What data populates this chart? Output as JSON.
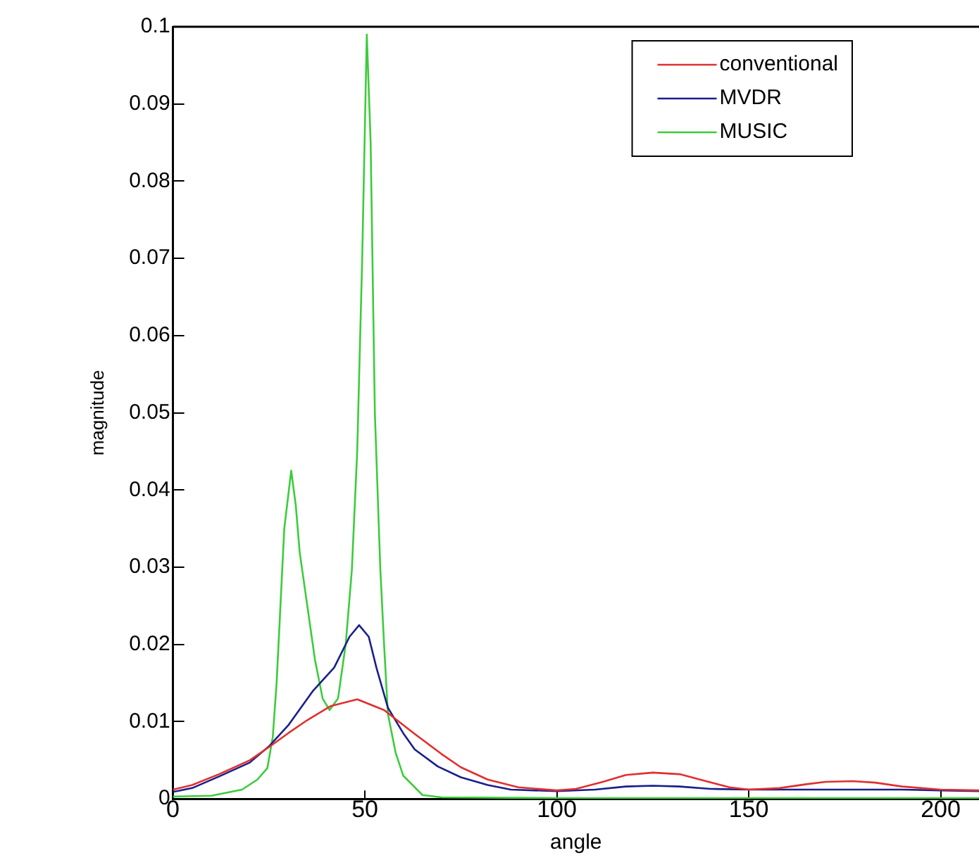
{
  "chart_data": {
    "type": "line",
    "xlabel": "angle",
    "ylabel": "magnitude",
    "xlim": [
      0,
      210
    ],
    "xticks": [
      0,
      50,
      100,
      150,
      200
    ],
    "ylim": [
      0,
      0.1
    ],
    "yticks": [
      0,
      0.01,
      0.02,
      0.03,
      0.04,
      0.05,
      0.06,
      0.07,
      0.08,
      0.09,
      0.1
    ],
    "grid": false,
    "legend": "top right",
    "marker": "none",
    "line_style": "solid",
    "series": [
      {
        "name": "conventional",
        "color": "#e0302f",
        "x": [
          0,
          5,
          12,
          20,
          25,
          30,
          35,
          41,
          48,
          55,
          63,
          70,
          75,
          82,
          90,
          100,
          105,
          112,
          118,
          125,
          132,
          138,
          145,
          150,
          158,
          165,
          170,
          177,
          183,
          190,
          200,
          210
        ],
        "values": [
          0.0012,
          0.0018,
          0.0032,
          0.005,
          0.0067,
          0.0085,
          0.0102,
          0.012,
          0.0129,
          0.0115,
          0.0084,
          0.0058,
          0.0041,
          0.0025,
          0.0015,
          0.0011,
          0.0013,
          0.0022,
          0.0031,
          0.0034,
          0.0032,
          0.0024,
          0.0015,
          0.0012,
          0.0014,
          0.0019,
          0.0022,
          0.0023,
          0.0021,
          0.0016,
          0.0012,
          0.0011
        ]
      },
      {
        "name": "MVDR",
        "color": "#1a1f8a",
        "x": [
          0,
          5,
          12,
          20,
          25,
          30,
          36.5,
          42,
          46,
          48.5,
          51,
          53,
          56,
          60,
          63,
          69,
          75,
          82,
          88,
          100,
          110,
          118,
          125,
          132,
          140,
          150,
          160,
          175,
          190,
          200,
          210
        ],
        "values": [
          0.0009,
          0.0014,
          0.0029,
          0.0047,
          0.0068,
          0.0095,
          0.014,
          0.017,
          0.021,
          0.0225,
          0.021,
          0.017,
          0.0118,
          0.0085,
          0.0064,
          0.0042,
          0.0028,
          0.0018,
          0.0012,
          0.001,
          0.0012,
          0.0016,
          0.0017,
          0.0016,
          0.0013,
          0.0012,
          0.0012,
          0.0012,
          0.0012,
          0.0011,
          0.001
        ]
      },
      {
        "name": "MUSIC",
        "color": "#3ccc3c",
        "x": [
          0,
          10,
          18,
          22,
          24.6,
          26,
          27,
          28,
          29,
          30.8,
          32,
          33,
          35,
          37,
          39,
          40.8,
          43,
          45,
          46.6,
          48,
          49.3,
          50.5,
          51.5,
          52.6,
          54,
          55,
          56,
          58,
          60,
          65,
          70,
          100,
          150,
          210
        ],
        "values": [
          0.0003,
          0.0004,
          0.0012,
          0.0025,
          0.004,
          0.008,
          0.015,
          0.025,
          0.035,
          0.0425,
          0.038,
          0.032,
          0.025,
          0.018,
          0.013,
          0.0115,
          0.013,
          0.02,
          0.0296,
          0.045,
          0.07,
          0.099,
          0.085,
          0.05,
          0.03,
          0.02,
          0.011,
          0.006,
          0.003,
          0.0005,
          0.0002,
          0.0001,
          0.0001,
          0.0001
        ]
      }
    ]
  }
}
